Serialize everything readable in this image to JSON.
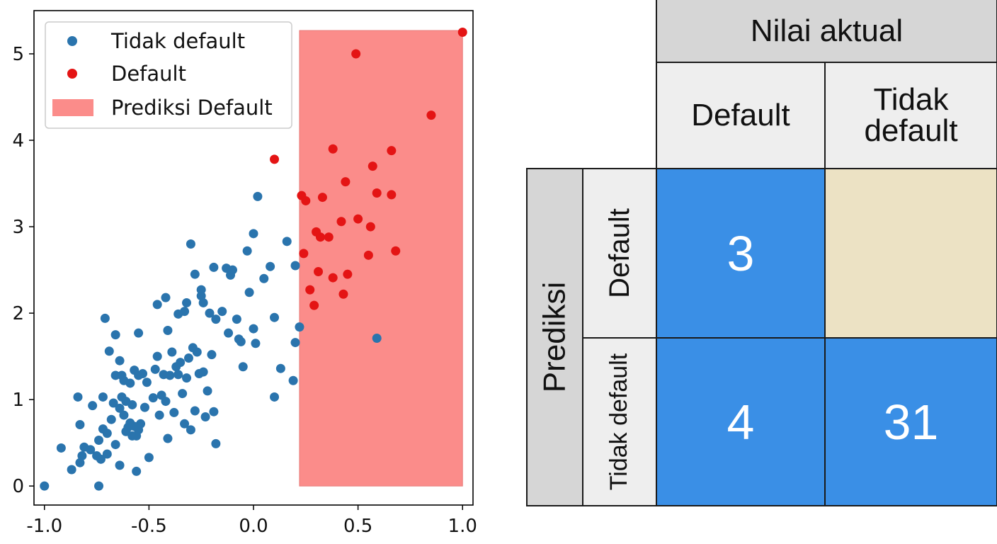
{
  "colors": {
    "not_default": "#2a74ad",
    "default": "#e41414",
    "predict_region": "#fb8c8a",
    "matrix_positive": "#3a8fe6",
    "matrix_empty": "#ece2c4",
    "header_dark": "#d6d6d6",
    "header_light": "#eeeeee"
  },
  "chart_data": [
    {
      "type": "scatter",
      "xlim": [
        -1.05,
        1.05
      ],
      "ylim": [
        -0.22,
        5.5
      ],
      "xticks": [
        "-1.0",
        "-0.5",
        "0.0",
        "0.5",
        "1.0"
      ],
      "yticks": [
        "0",
        "1",
        "2",
        "3",
        "4",
        "5"
      ],
      "grid": false,
      "legend_position": "top-left",
      "legend": [
        "Tidak default",
        "Default",
        "Prediksi Default"
      ],
      "region": {
        "name": "Prediksi Default",
        "x0": 0.22,
        "x1": 1.0,
        "y0": 0.0,
        "y1": 5.27
      },
      "series": [
        {
          "name": "Tidak default",
          "color": "#2a74ad",
          "points": [
            [
              -1.0,
              0.0
            ],
            [
              -0.74,
              0.0
            ],
            [
              -0.92,
              0.44
            ],
            [
              -0.87,
              0.19
            ],
            [
              -0.83,
              0.27
            ],
            [
              -0.82,
              0.35
            ],
            [
              -0.81,
              0.45
            ],
            [
              -0.83,
              0.71
            ],
            [
              -0.84,
              1.03
            ],
            [
              -0.77,
              0.93
            ],
            [
              -0.78,
              0.42
            ],
            [
              -0.75,
              0.35
            ],
            [
              -0.73,
              0.31
            ],
            [
              -0.74,
              0.53
            ],
            [
              -0.72,
              0.66
            ],
            [
              -0.72,
              1.03
            ],
            [
              -0.7,
              0.61
            ],
            [
              -0.7,
              0.37
            ],
            [
              -0.68,
              0.77
            ],
            [
              -0.67,
              0.96
            ],
            [
              -0.66,
              0.48
            ],
            [
              -0.64,
              0.9
            ],
            [
              -0.64,
              0.24
            ],
            [
              -0.63,
              1.03
            ],
            [
              -0.62,
              0.82
            ],
            [
              -0.61,
              0.63
            ],
            [
              -0.61,
              0.98
            ],
            [
              -0.6,
              0.68
            ],
            [
              -0.59,
              0.73
            ],
            [
              -0.58,
              0.58
            ],
            [
              -0.58,
              0.94
            ],
            [
              -0.57,
              0.69
            ],
            [
              -0.56,
              0.17
            ],
            [
              -0.56,
              0.58
            ],
            [
              -0.55,
              0.65
            ],
            [
              -0.54,
              0.72
            ],
            [
              -0.59,
              1.19
            ],
            [
              -0.62,
              1.22
            ],
            [
              -0.63,
              1.28
            ],
            [
              -0.64,
              1.45
            ],
            [
              -0.66,
              1.28
            ],
            [
              -0.57,
              1.34
            ],
            [
              -0.55,
              1.28
            ],
            [
              -0.53,
              1.3
            ],
            [
              -0.52,
              0.91
            ],
            [
              -0.51,
              1.2
            ],
            [
              -0.5,
              0.33
            ],
            [
              -0.48,
              1.02
            ],
            [
              -0.47,
              1.35
            ],
            [
              -0.46,
              1.5
            ],
            [
              -0.45,
              0.82
            ],
            [
              -0.44,
              1.05
            ],
            [
              -0.43,
              1.29
            ],
            [
              -0.42,
              0.98
            ],
            [
              -0.41,
              0.55
            ],
            [
              -0.4,
              1.28
            ],
            [
              -0.39,
              1.55
            ],
            [
              -0.38,
              0.85
            ],
            [
              -0.37,
              1.38
            ],
            [
              -0.36,
              1.29
            ],
            [
              -0.35,
              1.43
            ],
            [
              -0.34,
              1.07
            ],
            [
              -0.33,
              0.72
            ],
            [
              -0.32,
              1.25
            ],
            [
              -0.31,
              1.48
            ],
            [
              -0.3,
              0.65
            ],
            [
              -0.29,
              1.6
            ],
            [
              -0.28,
              0.87
            ],
            [
              -0.27,
              1.55
            ],
            [
              -0.26,
              1.3
            ],
            [
              -0.25,
              2.2
            ],
            [
              -0.24,
              1.32
            ],
            [
              -0.23,
              0.8
            ],
            [
              -0.22,
              1.1
            ],
            [
              -0.21,
              2.0
            ],
            [
              -0.2,
              1.52
            ],
            [
              -0.19,
              0.86
            ],
            [
              -0.18,
              0.49
            ],
            [
              -0.69,
              1.56
            ],
            [
              -0.66,
              1.75
            ],
            [
              -0.71,
              1.94
            ],
            [
              -0.55,
              1.77
            ],
            [
              -0.46,
              2.1
            ],
            [
              -0.42,
              2.18
            ],
            [
              -0.41,
              1.8
            ],
            [
              -0.36,
              1.99
            ],
            [
              -0.33,
              2.02
            ],
            [
              -0.32,
              2.12
            ],
            [
              -0.3,
              2.8
            ],
            [
              -0.28,
              2.45
            ],
            [
              -0.25,
              2.27
            ],
            [
              -0.24,
              2.12
            ],
            [
              -0.19,
              2.53
            ],
            [
              -0.18,
              1.93
            ],
            [
              -0.15,
              2.02
            ],
            [
              -0.13,
              2.52
            ],
            [
              -0.12,
              1.77
            ],
            [
              -0.11,
              2.44
            ],
            [
              -0.1,
              2.5
            ],
            [
              -0.08,
              1.93
            ],
            [
              -0.07,
              1.7
            ],
            [
              -0.06,
              1.67
            ],
            [
              -0.05,
              1.38
            ],
            [
              -0.03,
              2.72
            ],
            [
              -0.02,
              2.24
            ],
            [
              0.0,
              1.82
            ],
            [
              0.01,
              1.65
            ],
            [
              0.0,
              2.92
            ],
            [
              0.02,
              3.35
            ],
            [
              0.05,
              2.4
            ],
            [
              0.08,
              2.54
            ],
            [
              0.1,
              1.03
            ],
            [
              0.1,
              1.95
            ],
            [
              0.13,
              1.36
            ],
            [
              0.16,
              2.83
            ],
            [
              0.19,
              1.22
            ],
            [
              0.2,
              2.55
            ],
            [
              0.2,
              1.66
            ],
            [
              0.22,
              1.84
            ],
            [
              0.59,
              1.71
            ]
          ]
        },
        {
          "name": "Default",
          "color": "#e41414",
          "points": [
            [
              1.0,
              5.25
            ],
            [
              0.49,
              5.0
            ],
            [
              0.85,
              4.29
            ],
            [
              0.38,
              3.9
            ],
            [
              0.1,
              3.78
            ],
            [
              0.66,
              3.88
            ],
            [
              0.57,
              3.7
            ],
            [
              0.44,
              3.52
            ],
            [
              0.59,
              3.39
            ],
            [
              0.66,
              3.37
            ],
            [
              0.23,
              3.36
            ],
            [
              0.33,
              3.34
            ],
            [
              0.25,
              3.3
            ],
            [
              0.42,
              3.06
            ],
            [
              0.5,
              3.09
            ],
            [
              0.56,
              3.0
            ],
            [
              0.32,
              2.88
            ],
            [
              0.36,
              2.88
            ],
            [
              0.3,
              2.94
            ],
            [
              0.45,
              2.45
            ],
            [
              0.55,
              2.67
            ],
            [
              0.68,
              2.72
            ],
            [
              0.24,
              2.69
            ],
            [
              0.31,
              2.48
            ],
            [
              0.38,
              2.41
            ],
            [
              0.27,
              2.27
            ],
            [
              0.43,
              2.22
            ],
            [
              0.29,
              2.09
            ]
          ]
        }
      ]
    },
    {
      "type": "table",
      "title": "Nilai aktual",
      "row_axis_label": "Prediksi",
      "col_headers": [
        "Default",
        "Tidak\ndefault"
      ],
      "row_headers": [
        "Default",
        "Tidak default"
      ],
      "cells": [
        [
          "3",
          ""
        ],
        [
          "4",
          "31"
        ]
      ]
    }
  ]
}
